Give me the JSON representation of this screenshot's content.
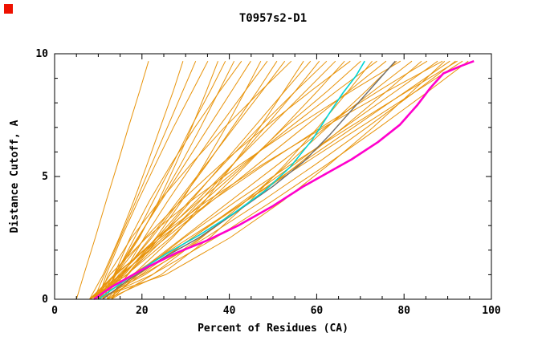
{
  "window": {
    "title": "T0957s2-D1 plot"
  },
  "corner_marker": {
    "color": "#ee1100"
  },
  "chart_data": {
    "type": "line",
    "title": "T0957s2-D1",
    "xlabel": "Percent of Residues (CA)",
    "ylabel": "Distance Cutoff, A",
    "xlim": [
      0,
      100
    ],
    "ylim": [
      0,
      10
    ],
    "x_major_ticks": [
      0,
      20,
      40,
      60,
      80,
      100
    ],
    "x_minor_tick_step": 5,
    "y_major_ticks": [
      0,
      5,
      10
    ],
    "y_minor_tick_step": 1,
    "grid": false,
    "legend": "none",
    "series_style": {
      "model": {
        "color": "#e8940c",
        "width": 1
      },
      "highlight_gray": {
        "color": "#6e6e6e",
        "width": 1.4
      },
      "highlight_cyan": {
        "color": "#00d4d4",
        "width": 1.6
      },
      "highlight_magenta": {
        "color": "#ff00cc",
        "width": 2.6
      }
    },
    "model_curves": [
      [
        [
          5,
          0
        ],
        [
          6.7,
          1
        ],
        [
          9.3,
          2.5
        ],
        [
          11.8,
          4
        ],
        [
          14.4,
          5.5
        ],
        [
          16.9,
          7
        ],
        [
          19.5,
          8.5
        ],
        [
          21.5,
          9.7
        ]
      ],
      [
        [
          8,
          0
        ],
        [
          11.1,
          1
        ],
        [
          14.8,
          2.5
        ],
        [
          18.1,
          4
        ],
        [
          21.2,
          5.5
        ],
        [
          24.2,
          7
        ],
        [
          27.2,
          8.5
        ],
        [
          29.4,
          9.7
        ]
      ],
      [
        [
          9,
          0
        ],
        [
          11.4,
          1
        ],
        [
          15,
          2.5
        ],
        [
          18.6,
          4
        ],
        [
          22.2,
          5.5
        ],
        [
          25.8,
          7
        ],
        [
          29.4,
          8.5
        ],
        [
          32.3,
          9.7
        ]
      ],
      [
        [
          10,
          0
        ],
        [
          11.8,
          1
        ],
        [
          15.3,
          2.5
        ],
        [
          19.1,
          4
        ],
        [
          23.1,
          5.5
        ],
        [
          27.2,
          7
        ],
        [
          31.6,
          8.5
        ],
        [
          35.1,
          9.7
        ]
      ],
      [
        [
          8,
          0
        ],
        [
          14,
          1
        ],
        [
          19.4,
          2.5
        ],
        [
          23.8,
          4
        ],
        [
          27.7,
          5.5
        ],
        [
          31.4,
          7
        ],
        [
          34.8,
          8.5
        ],
        [
          37.4,
          9.7
        ]
      ],
      [
        [
          11,
          0
        ],
        [
          13.9,
          1
        ],
        [
          18.3,
          2.5
        ],
        [
          22.6,
          4
        ],
        [
          27,
          5.5
        ],
        [
          31.2,
          7
        ],
        [
          35.7,
          8.5
        ],
        [
          39.1,
          9.7
        ]
      ],
      [
        [
          9,
          0
        ],
        [
          13.7,
          1
        ],
        [
          19.2,
          2.5
        ],
        [
          24.1,
          4
        ],
        [
          28.9,
          5.5
        ],
        [
          33.4,
          7
        ],
        [
          37.7,
          8.5
        ],
        [
          41.1,
          9.7
        ]
      ],
      [
        [
          12,
          0
        ],
        [
          13.6,
          1
        ],
        [
          17.3,
          2.5
        ],
        [
          21.7,
          4
        ],
        [
          26.7,
          5.5
        ],
        [
          32.1,
          7
        ],
        [
          37.9,
          8.5
        ],
        [
          42.8,
          9.7
        ]
      ],
      [
        [
          10,
          0
        ],
        [
          13.6,
          1
        ],
        [
          19,
          2.5
        ],
        [
          24.4,
          4
        ],
        [
          29.8,
          5.5
        ],
        [
          35.2,
          7
        ],
        [
          40.6,
          8.5
        ],
        [
          44.9,
          9.7
        ]
      ],
      [
        [
          8,
          0
        ],
        [
          16,
          1
        ],
        [
          23.2,
          2.5
        ],
        [
          29.1,
          4
        ],
        [
          34.3,
          5.5
        ],
        [
          39.2,
          7
        ],
        [
          43.7,
          8.5
        ],
        [
          47.2,
          9.7
        ]
      ],
      [
        [
          13,
          0
        ],
        [
          15.6,
          1
        ],
        [
          20.5,
          2.5
        ],
        [
          25.9,
          4
        ],
        [
          31.6,
          5.5
        ],
        [
          37.5,
          7
        ],
        [
          43.7,
          8.5
        ],
        [
          48.7,
          9.7
        ]
      ],
      [
        [
          9,
          0
        ],
        [
          15.1,
          1
        ],
        [
          22.2,
          2.5
        ],
        [
          28.7,
          4
        ],
        [
          34.9,
          5.5
        ],
        [
          40.7,
          7
        ],
        [
          46.5,
          8.5
        ],
        [
          50.9,
          9.7
        ]
      ],
      [
        [
          11,
          0
        ],
        [
          15.3,
          1
        ],
        [
          21.8,
          2.5
        ],
        [
          28.2,
          4
        ],
        [
          34.7,
          5.5
        ],
        [
          41.1,
          7
        ],
        [
          47.6,
          8.5
        ],
        [
          52.7,
          9.7
        ]
      ],
      [
        [
          10,
          0
        ],
        [
          12.3,
          1
        ],
        [
          17.6,
          2.5
        ],
        [
          24,
          4
        ],
        [
          31.2,
          5.5
        ],
        [
          38.9,
          7
        ],
        [
          47.3,
          8.5
        ],
        [
          54.2,
          9.7
        ]
      ],
      [
        [
          8,
          0
        ],
        [
          18,
          1
        ],
        [
          27,
          2.5
        ],
        [
          34.4,
          4
        ],
        [
          40.9,
          5.5
        ],
        [
          47,
          7
        ],
        [
          52.6,
          8.5
        ],
        [
          57,
          9.7
        ]
      ],
      [
        [
          12,
          0
        ],
        [
          16.8,
          1
        ],
        [
          24,
          2.5
        ],
        [
          31.2,
          4
        ],
        [
          38.4,
          5.5
        ],
        [
          45.6,
          7
        ],
        [
          52.8,
          8.5
        ],
        [
          58.6,
          9.7
        ]
      ],
      [
        [
          9,
          0
        ],
        [
          16.5,
          1
        ],
        [
          25.3,
          2.5
        ],
        [
          33.3,
          4
        ],
        [
          40.9,
          5.5
        ],
        [
          48.1,
          7
        ],
        [
          55.2,
          8.5
        ],
        [
          60.6,
          9.7
        ]
      ],
      [
        [
          13,
          0
        ],
        [
          16.6,
          1
        ],
        [
          23.4,
          2.5
        ],
        [
          30.8,
          4
        ],
        [
          38.7,
          5.5
        ],
        [
          46.8,
          7
        ],
        [
          55.3,
          8.5
        ],
        [
          62.3,
          9.7
        ]
      ],
      [
        [
          10,
          0
        ],
        [
          15.6,
          1
        ],
        [
          24,
          2.5
        ],
        [
          32.4,
          4
        ],
        [
          40.8,
          5.5
        ],
        [
          49.2,
          7
        ],
        [
          57.6,
          8.5
        ],
        [
          64.3,
          9.7
        ]
      ],
      [
        [
          8,
          0
        ],
        [
          16.5,
          1
        ],
        [
          26.5,
          2.5
        ],
        [
          35.5,
          4
        ],
        [
          44.1,
          5.5
        ],
        [
          52.3,
          7
        ],
        [
          60.3,
          8.5
        ],
        [
          66.4,
          9.7
        ]
      ],
      [
        [
          11,
          0
        ],
        [
          14,
          1
        ],
        [
          20.7,
          2.5
        ],
        [
          28.9,
          4
        ],
        [
          38.1,
          5.5
        ],
        [
          48.1,
          7
        ],
        [
          58.8,
          8.5
        ],
        [
          67.7,
          9.7
        ]
      ],
      [
        [
          9,
          0
        ],
        [
          15.3,
          1
        ],
        [
          24.8,
          2.5
        ],
        [
          34.2,
          4
        ],
        [
          43.7,
          5.5
        ],
        [
          52.6,
          7
        ],
        [
          62.6,
          8.5
        ],
        [
          70.1,
          9.7
        ]
      ],
      [
        [
          12,
          0
        ],
        [
          24.4,
          1
        ],
        [
          35.5,
          2.5
        ],
        [
          44.7,
          4
        ],
        [
          52.8,
          5.5
        ],
        [
          60.3,
          7
        ],
        [
          67.3,
          8.5
        ],
        [
          72.7,
          9.7
        ]
      ],
      [
        [
          10,
          0
        ],
        [
          14.7,
          1
        ],
        [
          23.4,
          2.5
        ],
        [
          33,
          4
        ],
        [
          43.2,
          5.5
        ],
        [
          53.8,
          7
        ],
        [
          64.7,
          8.5
        ],
        [
          73.8,
          9.7
        ]
      ],
      [
        [
          8,
          0
        ],
        [
          15,
          1
        ],
        [
          25.5,
          2.5
        ],
        [
          36,
          4
        ],
        [
          46.5,
          5.5
        ],
        [
          57,
          7
        ],
        [
          67.5,
          8.5
        ],
        [
          75.9,
          9.7
        ]
      ],
      [
        [
          13,
          0
        ],
        [
          22.4,
          1
        ],
        [
          33.6,
          2.5
        ],
        [
          43.8,
          4
        ],
        [
          53.3,
          5.5
        ],
        [
          62.4,
          7
        ],
        [
          71.4,
          8.5
        ],
        [
          78.3,
          9.7
        ]
      ],
      [
        [
          9,
          0
        ],
        [
          12.7,
          1
        ],
        [
          21,
          2.5
        ],
        [
          31.2,
          4
        ],
        [
          42.6,
          5.5
        ],
        [
          54.9,
          7
        ],
        [
          68.1,
          8.5
        ],
        [
          79.2,
          9.7
        ]
      ],
      [
        [
          11,
          0
        ],
        [
          18.3,
          1
        ],
        [
          29.3,
          2.5
        ],
        [
          40.2,
          4
        ],
        [
          51.2,
          5.5
        ],
        [
          62.1,
          7
        ],
        [
          73.1,
          8.5
        ],
        [
          81.8,
          9.7
        ]
      ],
      [
        [
          10,
          0
        ],
        [
          20.7,
          1
        ],
        [
          33.4,
          2.5
        ],
        [
          44.9,
          4
        ],
        [
          55.8,
          5.5
        ],
        [
          66.1,
          7
        ],
        [
          76.2,
          8.5
        ],
        [
          84,
          9.7
        ]
      ],
      [
        [
          8,
          0
        ],
        [
          13.7,
          1
        ],
        [
          24.2,
          2.5
        ],
        [
          35.9,
          4
        ],
        [
          48.2,
          5.5
        ],
        [
          61,
          7
        ],
        [
          74.3,
          8.5
        ],
        [
          85.3,
          9.7
        ]
      ],
      [
        [
          12,
          0
        ],
        [
          19.8,
          1
        ],
        [
          31.5,
          2.5
        ],
        [
          43.2,
          4
        ],
        [
          54.9,
          5.5
        ],
        [
          66.3,
          7
        ],
        [
          78.3,
          8.5
        ],
        [
          87.7,
          9.7
        ]
      ],
      [
        [
          9,
          0
        ],
        [
          25.4,
          1
        ],
        [
          40.1,
          2.5
        ],
        [
          52.2,
          4
        ],
        [
          62.9,
          5.5
        ],
        [
          72.9,
          7
        ],
        [
          82.1,
          8.5
        ],
        [
          89.3,
          9.7
        ]
      ],
      [
        [
          10,
          0
        ],
        [
          14.1,
          1
        ],
        [
          23.5,
          2.5
        ],
        [
          34.9,
          4
        ],
        [
          47.7,
          5.5
        ],
        [
          61.6,
          7
        ],
        [
          76.4,
          8.5
        ],
        [
          88.8,
          9.7
        ]
      ],
      [
        [
          11,
          0
        ],
        [
          19.2,
          1
        ],
        [
          31.5,
          2.5
        ],
        [
          43.8,
          4
        ],
        [
          56.1,
          5.5
        ],
        [
          68.4,
          7
        ],
        [
          80.7,
          8.5
        ],
        [
          90.5,
          9.7
        ]
      ],
      [
        [
          8,
          0
        ],
        [
          20.1,
          1
        ],
        [
          34.5,
          2.5
        ],
        [
          47.5,
          4
        ],
        [
          59.8,
          5.5
        ],
        [
          71.5,
          7
        ],
        [
          82.9,
          8.5
        ],
        [
          91.8,
          9.7
        ]
      ],
      [
        [
          13,
          0
        ],
        [
          18.8,
          1
        ],
        [
          29.6,
          2.5
        ],
        [
          41.6,
          4
        ],
        [
          54.2,
          5.5
        ],
        [
          67.4,
          7
        ],
        [
          81,
          8.5
        ],
        [
          92.2,
          9.7
        ]
      ],
      [
        [
          9,
          0
        ],
        [
          17.7,
          1
        ],
        [
          30.8,
          2.5
        ],
        [
          43.8,
          4
        ],
        [
          56.9,
          5.5
        ],
        [
          69.9,
          7
        ],
        [
          83,
          8.5
        ],
        [
          93.4,
          9.7
        ]
      ],
      [
        [
          10,
          0
        ],
        [
          22.3,
          1
        ],
        [
          36.8,
          2.5
        ],
        [
          49.9,
          4
        ],
        [
          62.4,
          5.5
        ],
        [
          74.3,
          7
        ],
        [
          85.8,
          8.5
        ],
        [
          94.7,
          9.7
        ]
      ]
    ],
    "highlight_curves": {
      "gray": [
        [
          11,
          0
        ],
        [
          17,
          0.8
        ],
        [
          25,
          1.7
        ],
        [
          33,
          2.5
        ],
        [
          42,
          3.6
        ],
        [
          50,
          4.6
        ],
        [
          57,
          5.6
        ],
        [
          63,
          6.7
        ],
        [
          68,
          7.7
        ],
        [
          72,
          8.5
        ],
        [
          75,
          9.1
        ],
        [
          78,
          9.7
        ]
      ],
      "cyan": [
        [
          10,
          0
        ],
        [
          18,
          1
        ],
        [
          26,
          1.9
        ],
        [
          33,
          2.6
        ],
        [
          41,
          3.5
        ],
        [
          48,
          4.4
        ],
        [
          54,
          5.4
        ],
        [
          59,
          6.5
        ],
        [
          63,
          7.6
        ],
        [
          66,
          8.4
        ],
        [
          69,
          9.1
        ],
        [
          71,
          9.7
        ]
      ],
      "magenta": [
        [
          9,
          0
        ],
        [
          13,
          0.5
        ],
        [
          20,
          1.2
        ],
        [
          28,
          1.9
        ],
        [
          35,
          2.4
        ],
        [
          42,
          3
        ],
        [
          50,
          3.8
        ],
        [
          57,
          4.6
        ],
        [
          63,
          5.2
        ],
        [
          68,
          5.7
        ],
        [
          74,
          6.4
        ],
        [
          79,
          7.1
        ],
        [
          83,
          7.9
        ],
        [
          86,
          8.6
        ],
        [
          89,
          9.2
        ],
        [
          93,
          9.5
        ],
        [
          96,
          9.7
        ]
      ]
    }
  }
}
